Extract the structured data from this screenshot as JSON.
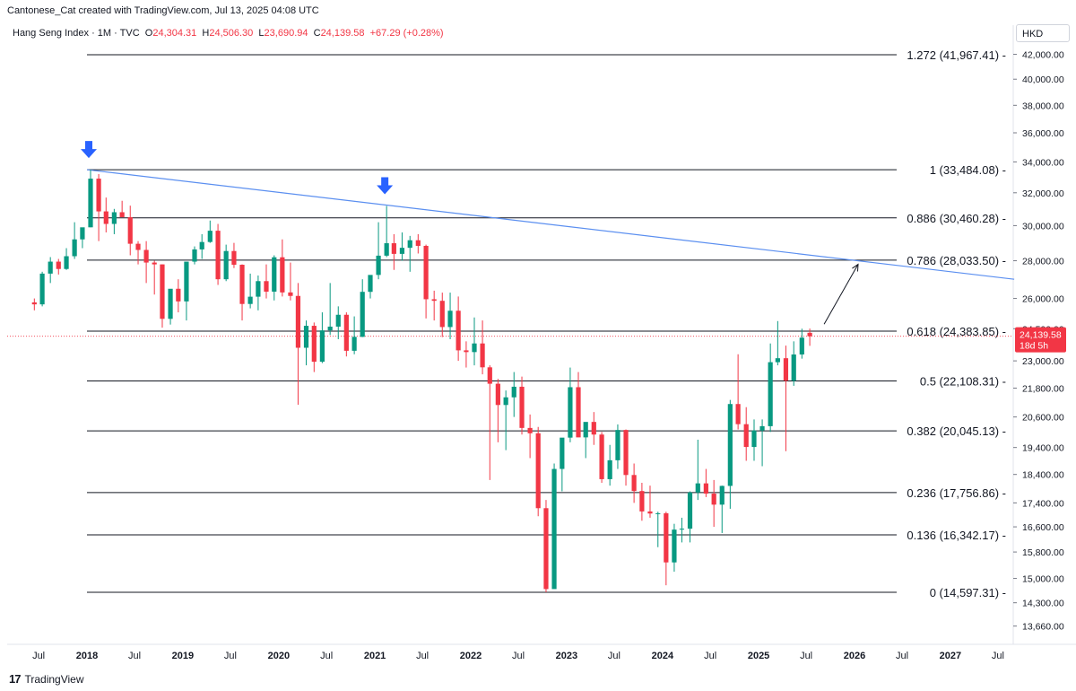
{
  "header": {
    "credit": "Cantonese_Cat created with TradingView.com, Jul 13, 2025 04:08 UTC",
    "symbol": "Hang Seng Index · 1M · TVC",
    "open_label": "O",
    "open": "24,304.31",
    "high_label": "H",
    "high": "24,506.30",
    "low_label": "L",
    "low": "23,690.94",
    "close_label": "C",
    "close": "24,139.58",
    "change": "+67.29 (+0.28%)",
    "currency": "HKD"
  },
  "footer": {
    "brand": "TradingView"
  },
  "colors": {
    "up": "#089981",
    "down": "#f23645",
    "trendline": "#5b8ff0",
    "fib": "#131722",
    "arrow_marker": "#2962ff",
    "price_label_bg": "#f23645"
  },
  "chart_data": {
    "type": "candlestick",
    "title": "",
    "xlabel": "",
    "ylabel": "",
    "ylim": [
      13200,
      42800
    ],
    "y_axis_ticks": [
      "42,000.00",
      "40,000.00",
      "38,000.00",
      "36,000.00",
      "34,000.00",
      "32,000.00",
      "30,000.00",
      "28,000.00",
      "26,000.00",
      "24,500.00",
      "23,000.00",
      "21,800.00",
      "20,600.00",
      "19,400.00",
      "18,400.00",
      "17,400.00",
      "16,600.00",
      "15,800.00",
      "15,000.00",
      "14,300.00",
      "13,660.00"
    ],
    "y_axis_tick_values": [
      42000,
      40000,
      38000,
      36000,
      34000,
      32000,
      30000,
      28000,
      26000,
      24500,
      23000,
      21800,
      20600,
      19400,
      18400,
      17400,
      16600,
      15800,
      15000,
      14300,
      13660
    ],
    "x_axis_ticks": [
      {
        "label": "Jul",
        "date": "2017-07"
      },
      {
        "label": "2018",
        "date": "2018-01"
      },
      {
        "label": "Jul",
        "date": "2018-07"
      },
      {
        "label": "2019",
        "date": "2019-01"
      },
      {
        "label": "Jul",
        "date": "2019-07"
      },
      {
        "label": "2020",
        "date": "2020-01"
      },
      {
        "label": "Jul",
        "date": "2020-07"
      },
      {
        "label": "2021",
        "date": "2021-01"
      },
      {
        "label": "Jul",
        "date": "2021-07"
      },
      {
        "label": "2022",
        "date": "2022-01"
      },
      {
        "label": "Jul",
        "date": "2022-07"
      },
      {
        "label": "2023",
        "date": "2023-01"
      },
      {
        "label": "Jul",
        "date": "2023-07"
      },
      {
        "label": "2024",
        "date": "2024-01"
      },
      {
        "label": "Jul",
        "date": "2024-07"
      },
      {
        "label": "2025",
        "date": "2025-01"
      },
      {
        "label": "Jul",
        "date": "2025-07"
      },
      {
        "label": "2026",
        "date": "2026-01"
      },
      {
        "label": "Jul",
        "date": "2026-07"
      },
      {
        "label": "2027",
        "date": "2027-01"
      },
      {
        "label": "Jul",
        "date": "2027-07"
      }
    ],
    "fib_levels": [
      {
        "label": "1.272 (41,967.41)",
        "value": 41967.41
      },
      {
        "label": "1 (33,484.08)",
        "value": 33484.08
      },
      {
        "label": "0.886 (30,460.28)",
        "value": 30460.28
      },
      {
        "label": "0.786 (28,033.50)",
        "value": 28033.5
      },
      {
        "label": "0.618 (24,383.85)",
        "value": 24383.85
      },
      {
        "label": "0.5 (22,108.31)",
        "value": 22108.31
      },
      {
        "label": "0.382 (20,045.13)",
        "value": 20045.13
      },
      {
        "label": "0.236 (17,756.86)",
        "value": 17756.86
      },
      {
        "label": "0.136 (16,342.17)",
        "value": 16342.17
      },
      {
        "label": "0 (14,597.31)",
        "value": 14597.31
      }
    ],
    "fib_start_date": "2018-01",
    "trendline": {
      "from": {
        "date": "2018-01",
        "value": 33484
      },
      "to": {
        "date": "2027-09",
        "value": 27000
      }
    },
    "projection_arrow": {
      "from": {
        "date": "2025-07",
        "value": 24500
      },
      "to": {
        "date": "2026-01",
        "value": 28000
      }
    },
    "markers": [
      {
        "date": "2018-01",
        "value": 33484
      },
      {
        "date": "2021-02",
        "value": 31183
      }
    ],
    "last_price": {
      "value": 24139.58,
      "label": "24,139.58",
      "countdown": "18d 5h"
    },
    "series": [
      {
        "date": "2017-06",
        "o": 25800,
        "h": 26000,
        "l": 25400,
        "c": 25700
      },
      {
        "date": "2017-07",
        "o": 25700,
        "h": 27400,
        "l": 25600,
        "c": 27300
      },
      {
        "date": "2017-08",
        "o": 27300,
        "h": 28200,
        "l": 26800,
        "c": 27950
      },
      {
        "date": "2017-09",
        "o": 27950,
        "h": 28100,
        "l": 27250,
        "c": 27550
      },
      {
        "date": "2017-10",
        "o": 27550,
        "h": 28700,
        "l": 27500,
        "c": 28250
      },
      {
        "date": "2017-11",
        "o": 28250,
        "h": 30200,
        "l": 28100,
        "c": 29200
      },
      {
        "date": "2017-12",
        "o": 29200,
        "h": 29700,
        "l": 28700,
        "c": 29900
      },
      {
        "date": "2018-01",
        "o": 29900,
        "h": 33484,
        "l": 29900,
        "c": 32900
      },
      {
        "date": "2018-02",
        "o": 32900,
        "h": 33200,
        "l": 29100,
        "c": 30850
      },
      {
        "date": "2018-03",
        "o": 30850,
        "h": 31700,
        "l": 29600,
        "c": 30100
      },
      {
        "date": "2018-04",
        "o": 30100,
        "h": 31000,
        "l": 29500,
        "c": 30800
      },
      {
        "date": "2018-05",
        "o": 30800,
        "h": 31500,
        "l": 30500,
        "c": 30500
      },
      {
        "date": "2018-06",
        "o": 30500,
        "h": 31200,
        "l": 28300,
        "c": 28950
      },
      {
        "date": "2018-07",
        "o": 28950,
        "h": 29100,
        "l": 27800,
        "c": 28600
      },
      {
        "date": "2018-08",
        "o": 28600,
        "h": 29100,
        "l": 26800,
        "c": 27900
      },
      {
        "date": "2018-09",
        "o": 27900,
        "h": 28000,
        "l": 26200,
        "c": 27800
      },
      {
        "date": "2018-10",
        "o": 27800,
        "h": 27800,
        "l": 24550,
        "c": 24980
      },
      {
        "date": "2018-11",
        "o": 24980,
        "h": 26400,
        "l": 24700,
        "c": 26500
      },
      {
        "date": "2018-12",
        "o": 26500,
        "h": 27000,
        "l": 25300,
        "c": 25850
      },
      {
        "date": "2019-01",
        "o": 25850,
        "h": 27900,
        "l": 24900,
        "c": 27950
      },
      {
        "date": "2019-02",
        "o": 27950,
        "h": 28800,
        "l": 27800,
        "c": 28630
      },
      {
        "date": "2019-03",
        "o": 28630,
        "h": 29500,
        "l": 28100,
        "c": 29050
      },
      {
        "date": "2019-04",
        "o": 29050,
        "h": 30300,
        "l": 29000,
        "c": 29700
      },
      {
        "date": "2019-05",
        "o": 29700,
        "h": 30100,
        "l": 26700,
        "c": 27000
      },
      {
        "date": "2019-06",
        "o": 27000,
        "h": 28900,
        "l": 26900,
        "c": 28540
      },
      {
        "date": "2019-07",
        "o": 28540,
        "h": 29000,
        "l": 27600,
        "c": 27780
      },
      {
        "date": "2019-08",
        "o": 27780,
        "h": 27800,
        "l": 24900,
        "c": 25720
      },
      {
        "date": "2019-09",
        "o": 25720,
        "h": 27300,
        "l": 25500,
        "c": 26090
      },
      {
        "date": "2019-10",
        "o": 26090,
        "h": 27200,
        "l": 25400,
        "c": 26900
      },
      {
        "date": "2019-11",
        "o": 26900,
        "h": 27800,
        "l": 26000,
        "c": 26350
      },
      {
        "date": "2019-12",
        "o": 26350,
        "h": 28300,
        "l": 25900,
        "c": 28190
      },
      {
        "date": "2020-01",
        "o": 28190,
        "h": 29200,
        "l": 26100,
        "c": 26310
      },
      {
        "date": "2020-02",
        "o": 26310,
        "h": 27900,
        "l": 25900,
        "c": 26130
      },
      {
        "date": "2020-03",
        "o": 26130,
        "h": 26800,
        "l": 21100,
        "c": 23600
      },
      {
        "date": "2020-04",
        "o": 23600,
        "h": 24900,
        "l": 22800,
        "c": 24640
      },
      {
        "date": "2020-05",
        "o": 24640,
        "h": 24800,
        "l": 22500,
        "c": 22960
      },
      {
        "date": "2020-06",
        "o": 22960,
        "h": 25300,
        "l": 22900,
        "c": 24420
      },
      {
        "date": "2020-07",
        "o": 24420,
        "h": 26800,
        "l": 24200,
        "c": 24600
      },
      {
        "date": "2020-08",
        "o": 24600,
        "h": 25600,
        "l": 24000,
        "c": 25180
      },
      {
        "date": "2020-09",
        "o": 25180,
        "h": 25300,
        "l": 23200,
        "c": 23460
      },
      {
        "date": "2020-10",
        "o": 23460,
        "h": 25100,
        "l": 23300,
        "c": 24110
      },
      {
        "date": "2020-11",
        "o": 24110,
        "h": 27000,
        "l": 24100,
        "c": 26340
      },
      {
        "date": "2020-12",
        "o": 26340,
        "h": 27200,
        "l": 26000,
        "c": 27230
      },
      {
        "date": "2021-01",
        "o": 27230,
        "h": 30200,
        "l": 27000,
        "c": 28280
      },
      {
        "date": "2021-02",
        "o": 28280,
        "h": 31183,
        "l": 28200,
        "c": 28980
      },
      {
        "date": "2021-03",
        "o": 28980,
        "h": 29500,
        "l": 27500,
        "c": 28380
      },
      {
        "date": "2021-04",
        "o": 28380,
        "h": 29600,
        "l": 28000,
        "c": 28720
      },
      {
        "date": "2021-05",
        "o": 28720,
        "h": 29400,
        "l": 27400,
        "c": 29150
      },
      {
        "date": "2021-06",
        "o": 29150,
        "h": 29500,
        "l": 28400,
        "c": 28830
      },
      {
        "date": "2021-07",
        "o": 28830,
        "h": 28900,
        "l": 25000,
        "c": 25960
      },
      {
        "date": "2021-08",
        "o": 25960,
        "h": 26400,
        "l": 24900,
        "c": 25880
      },
      {
        "date": "2021-09",
        "o": 25880,
        "h": 26300,
        "l": 24100,
        "c": 24580
      },
      {
        "date": "2021-10",
        "o": 24580,
        "h": 26300,
        "l": 24000,
        "c": 25380
      },
      {
        "date": "2021-11",
        "o": 25380,
        "h": 26100,
        "l": 23000,
        "c": 23480
      },
      {
        "date": "2021-12",
        "o": 23480,
        "h": 23900,
        "l": 22700,
        "c": 23400
      },
      {
        "date": "2022-01",
        "o": 23400,
        "h": 25050,
        "l": 22800,
        "c": 23800
      },
      {
        "date": "2022-02",
        "o": 23800,
        "h": 24900,
        "l": 22400,
        "c": 22710
      },
      {
        "date": "2022-03",
        "o": 22710,
        "h": 22800,
        "l": 18200,
        "c": 21990
      },
      {
        "date": "2022-04",
        "o": 21990,
        "h": 22200,
        "l": 19600,
        "c": 21090
      },
      {
        "date": "2022-05",
        "o": 21090,
        "h": 21700,
        "l": 19300,
        "c": 21410
      },
      {
        "date": "2022-06",
        "o": 21410,
        "h": 22500,
        "l": 20600,
        "c": 21860
      },
      {
        "date": "2022-07",
        "o": 21860,
        "h": 22300,
        "l": 19900,
        "c": 20160
      },
      {
        "date": "2022-08",
        "o": 20160,
        "h": 20700,
        "l": 19000,
        "c": 19950
      },
      {
        "date": "2022-09",
        "o": 19950,
        "h": 20200,
        "l": 16950,
        "c": 17220
      },
      {
        "date": "2022-10",
        "o": 17220,
        "h": 17500,
        "l": 14597,
        "c": 14690
      },
      {
        "date": "2022-11",
        "o": 14690,
        "h": 18800,
        "l": 14700,
        "c": 18600
      },
      {
        "date": "2022-12",
        "o": 18600,
        "h": 19600,
        "l": 17800,
        "c": 19780
      },
      {
        "date": "2023-01",
        "o": 19780,
        "h": 22700,
        "l": 19600,
        "c": 21840
      },
      {
        "date": "2023-02",
        "o": 21840,
        "h": 22500,
        "l": 19800,
        "c": 19790
      },
      {
        "date": "2023-03",
        "o": 19790,
        "h": 20300,
        "l": 19000,
        "c": 20400
      },
      {
        "date": "2023-04",
        "o": 20400,
        "h": 20800,
        "l": 19500,
        "c": 19900
      },
      {
        "date": "2023-05",
        "o": 19900,
        "h": 20000,
        "l": 18100,
        "c": 18230
      },
      {
        "date": "2023-06",
        "o": 18230,
        "h": 19500,
        "l": 18000,
        "c": 18920
      },
      {
        "date": "2023-07",
        "o": 18920,
        "h": 20300,
        "l": 18600,
        "c": 20080
      },
      {
        "date": "2023-08",
        "o": 20080,
        "h": 20100,
        "l": 18000,
        "c": 18380
      },
      {
        "date": "2023-09",
        "o": 18380,
        "h": 18800,
        "l": 17400,
        "c": 17810
      },
      {
        "date": "2023-10",
        "o": 17810,
        "h": 18100,
        "l": 16800,
        "c": 17110
      },
      {
        "date": "2023-11",
        "o": 17110,
        "h": 18000,
        "l": 16900,
        "c": 17040
      },
      {
        "date": "2023-12",
        "o": 17040,
        "h": 17100,
        "l": 15950,
        "c": 17050
      },
      {
        "date": "2024-01",
        "o": 17050,
        "h": 17100,
        "l": 14800,
        "c": 15480
      },
      {
        "date": "2024-02",
        "o": 15480,
        "h": 16700,
        "l": 15200,
        "c": 16510
      },
      {
        "date": "2024-03",
        "o": 16510,
        "h": 16900,
        "l": 16100,
        "c": 16540
      },
      {
        "date": "2024-04",
        "o": 16540,
        "h": 17800,
        "l": 16100,
        "c": 17760
      },
      {
        "date": "2024-05",
        "o": 17760,
        "h": 19700,
        "l": 17500,
        "c": 18080
      },
      {
        "date": "2024-06",
        "o": 18080,
        "h": 18600,
        "l": 17600,
        "c": 17720
      },
      {
        "date": "2024-07",
        "o": 17720,
        "h": 18200,
        "l": 16600,
        "c": 17340
      },
      {
        "date": "2024-08",
        "o": 17340,
        "h": 18000,
        "l": 16400,
        "c": 17990
      },
      {
        "date": "2024-09",
        "o": 17990,
        "h": 21300,
        "l": 17200,
        "c": 21130
      },
      {
        "date": "2024-10",
        "o": 21130,
        "h": 23300,
        "l": 20100,
        "c": 20310
      },
      {
        "date": "2024-11",
        "o": 20310,
        "h": 21000,
        "l": 18900,
        "c": 19420
      },
      {
        "date": "2024-12",
        "o": 19420,
        "h": 20500,
        "l": 18900,
        "c": 20060
      },
      {
        "date": "2025-01",
        "o": 20060,
        "h": 20500,
        "l": 18700,
        "c": 20230
      },
      {
        "date": "2025-02",
        "o": 20230,
        "h": 23800,
        "l": 20000,
        "c": 22940
      },
      {
        "date": "2025-03",
        "o": 22940,
        "h": 24870,
        "l": 22800,
        "c": 23120
      },
      {
        "date": "2025-04",
        "o": 23120,
        "h": 23700,
        "l": 19260,
        "c": 22120
      },
      {
        "date": "2025-05",
        "o": 22120,
        "h": 23900,
        "l": 21900,
        "c": 23290
      },
      {
        "date": "2025-06",
        "o": 23290,
        "h": 24500,
        "l": 23100,
        "c": 24072
      },
      {
        "date": "2025-07",
        "o": 24304,
        "h": 24506,
        "l": 23690,
        "c": 24139
      }
    ]
  }
}
